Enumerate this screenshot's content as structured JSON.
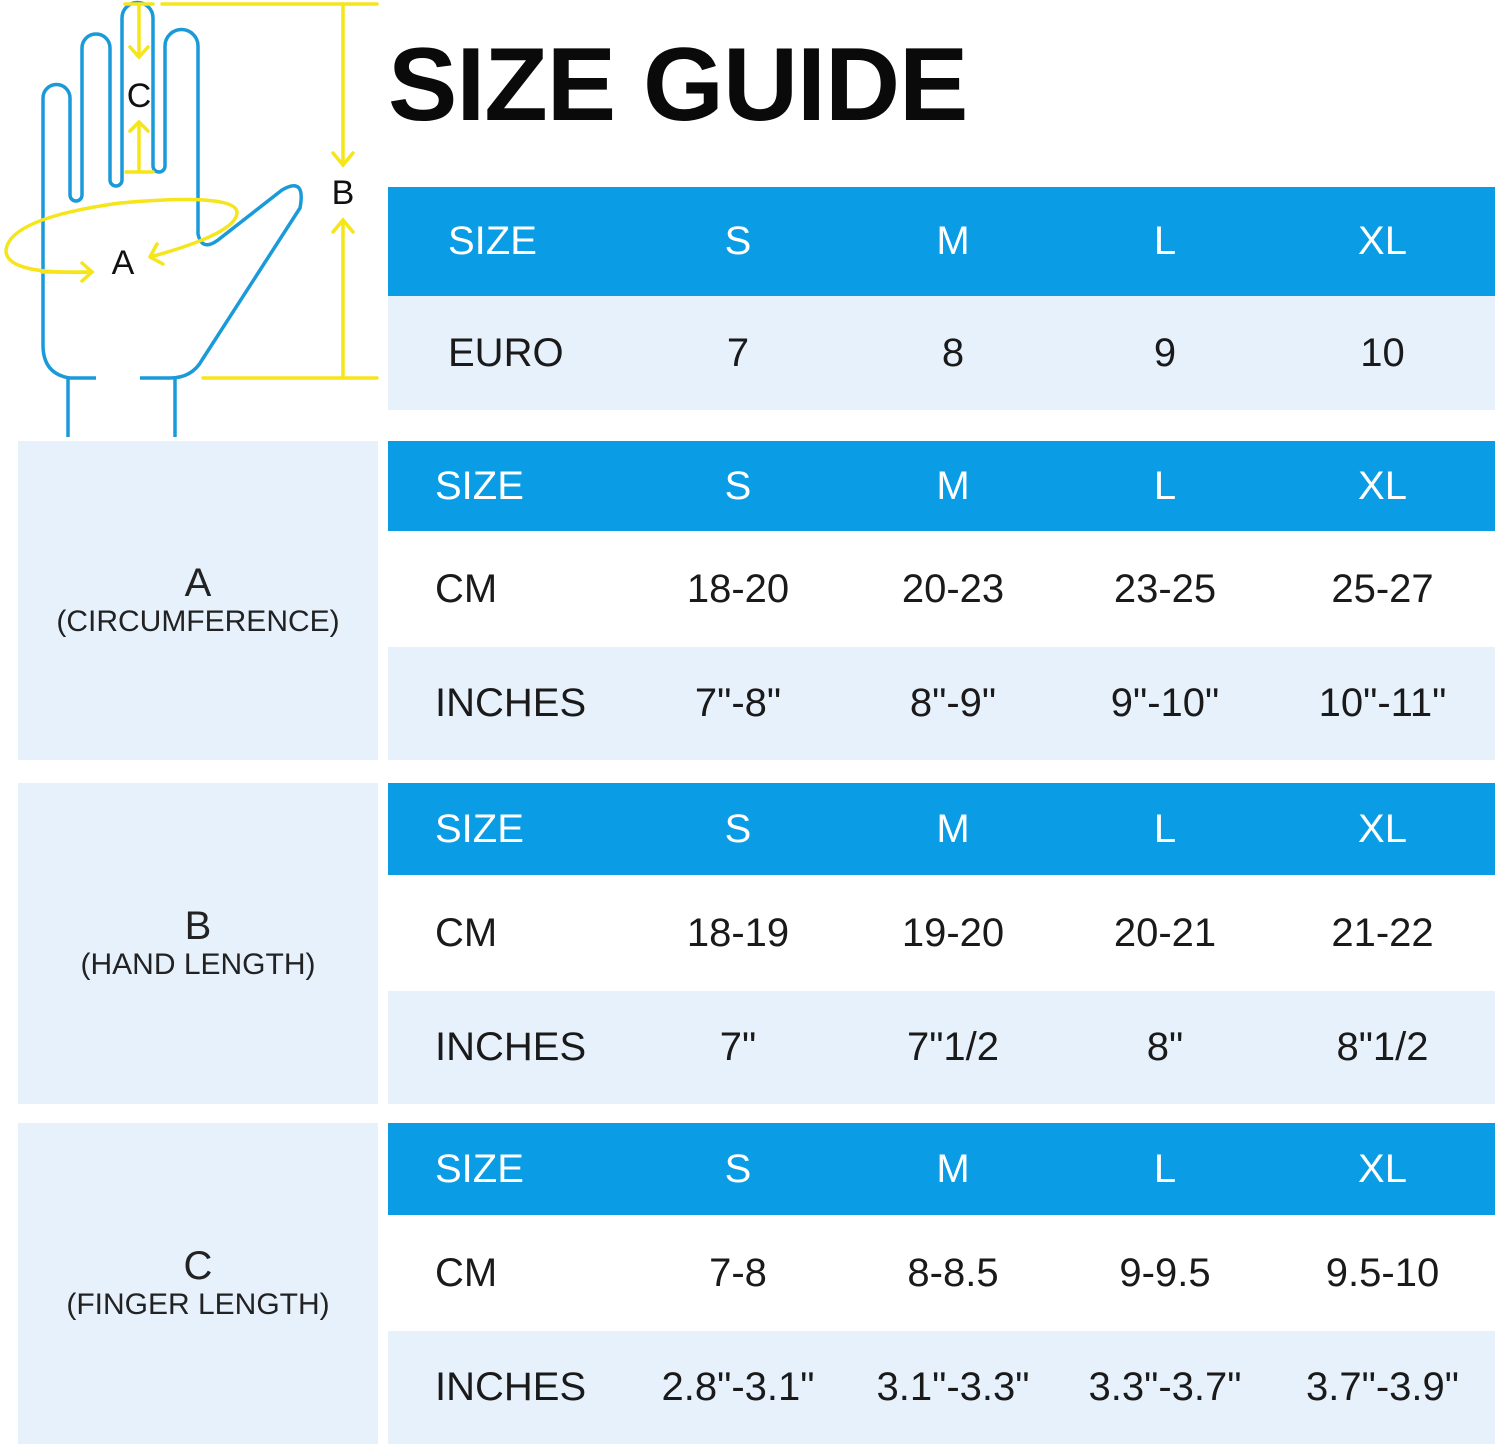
{
  "title": "SIZE GUIDE",
  "diagram": {
    "label_a": "A",
    "label_b": "B",
    "label_c": "C",
    "colors": {
      "hand": "#1a9ad9",
      "measure": "#f5e51a"
    }
  },
  "colors": {
    "header": "#0a9de6",
    "row_light": "#e7f1fc"
  },
  "sizes": [
    "S",
    "M",
    "L",
    "XL"
  ],
  "euro_table": {
    "header": "SIZE",
    "row_label": "EURO",
    "values": [
      "7",
      "8",
      "9",
      "10"
    ]
  },
  "sections": [
    {
      "letter": "A",
      "desc": "(CIRCUMFERENCE)",
      "header": "SIZE",
      "rows": [
        {
          "label": "CM",
          "values": [
            "18-20",
            "20-23",
            "23-25",
            "25-27"
          ]
        },
        {
          "label": "INCHES",
          "values": [
            "7\"-8\"",
            "8\"-9\"",
            "9\"-10\"",
            "10\"-11\""
          ]
        }
      ]
    },
    {
      "letter": "B",
      "desc": "(HAND LENGTH)",
      "header": "SIZE",
      "rows": [
        {
          "label": "CM",
          "values": [
            "18-19",
            "19-20",
            "20-21",
            "21-22"
          ]
        },
        {
          "label": "INCHES",
          "values": [
            "7\"",
            "7\"1/2",
            "8\"",
            "8\"1/2"
          ]
        }
      ]
    },
    {
      "letter": "C",
      "desc": "(FINGER LENGTH)",
      "header": "SIZE",
      "rows": [
        {
          "label": "CM",
          "values": [
            "7-8",
            "8-8.5",
            "9-9.5",
            "9.5-10"
          ]
        },
        {
          "label": "INCHES",
          "values": [
            "2.8\"-3.1\"",
            "3.1\"-3.3\"",
            "3.3\"-3.7\"",
            "3.7\"-3.9\""
          ]
        }
      ]
    }
  ]
}
